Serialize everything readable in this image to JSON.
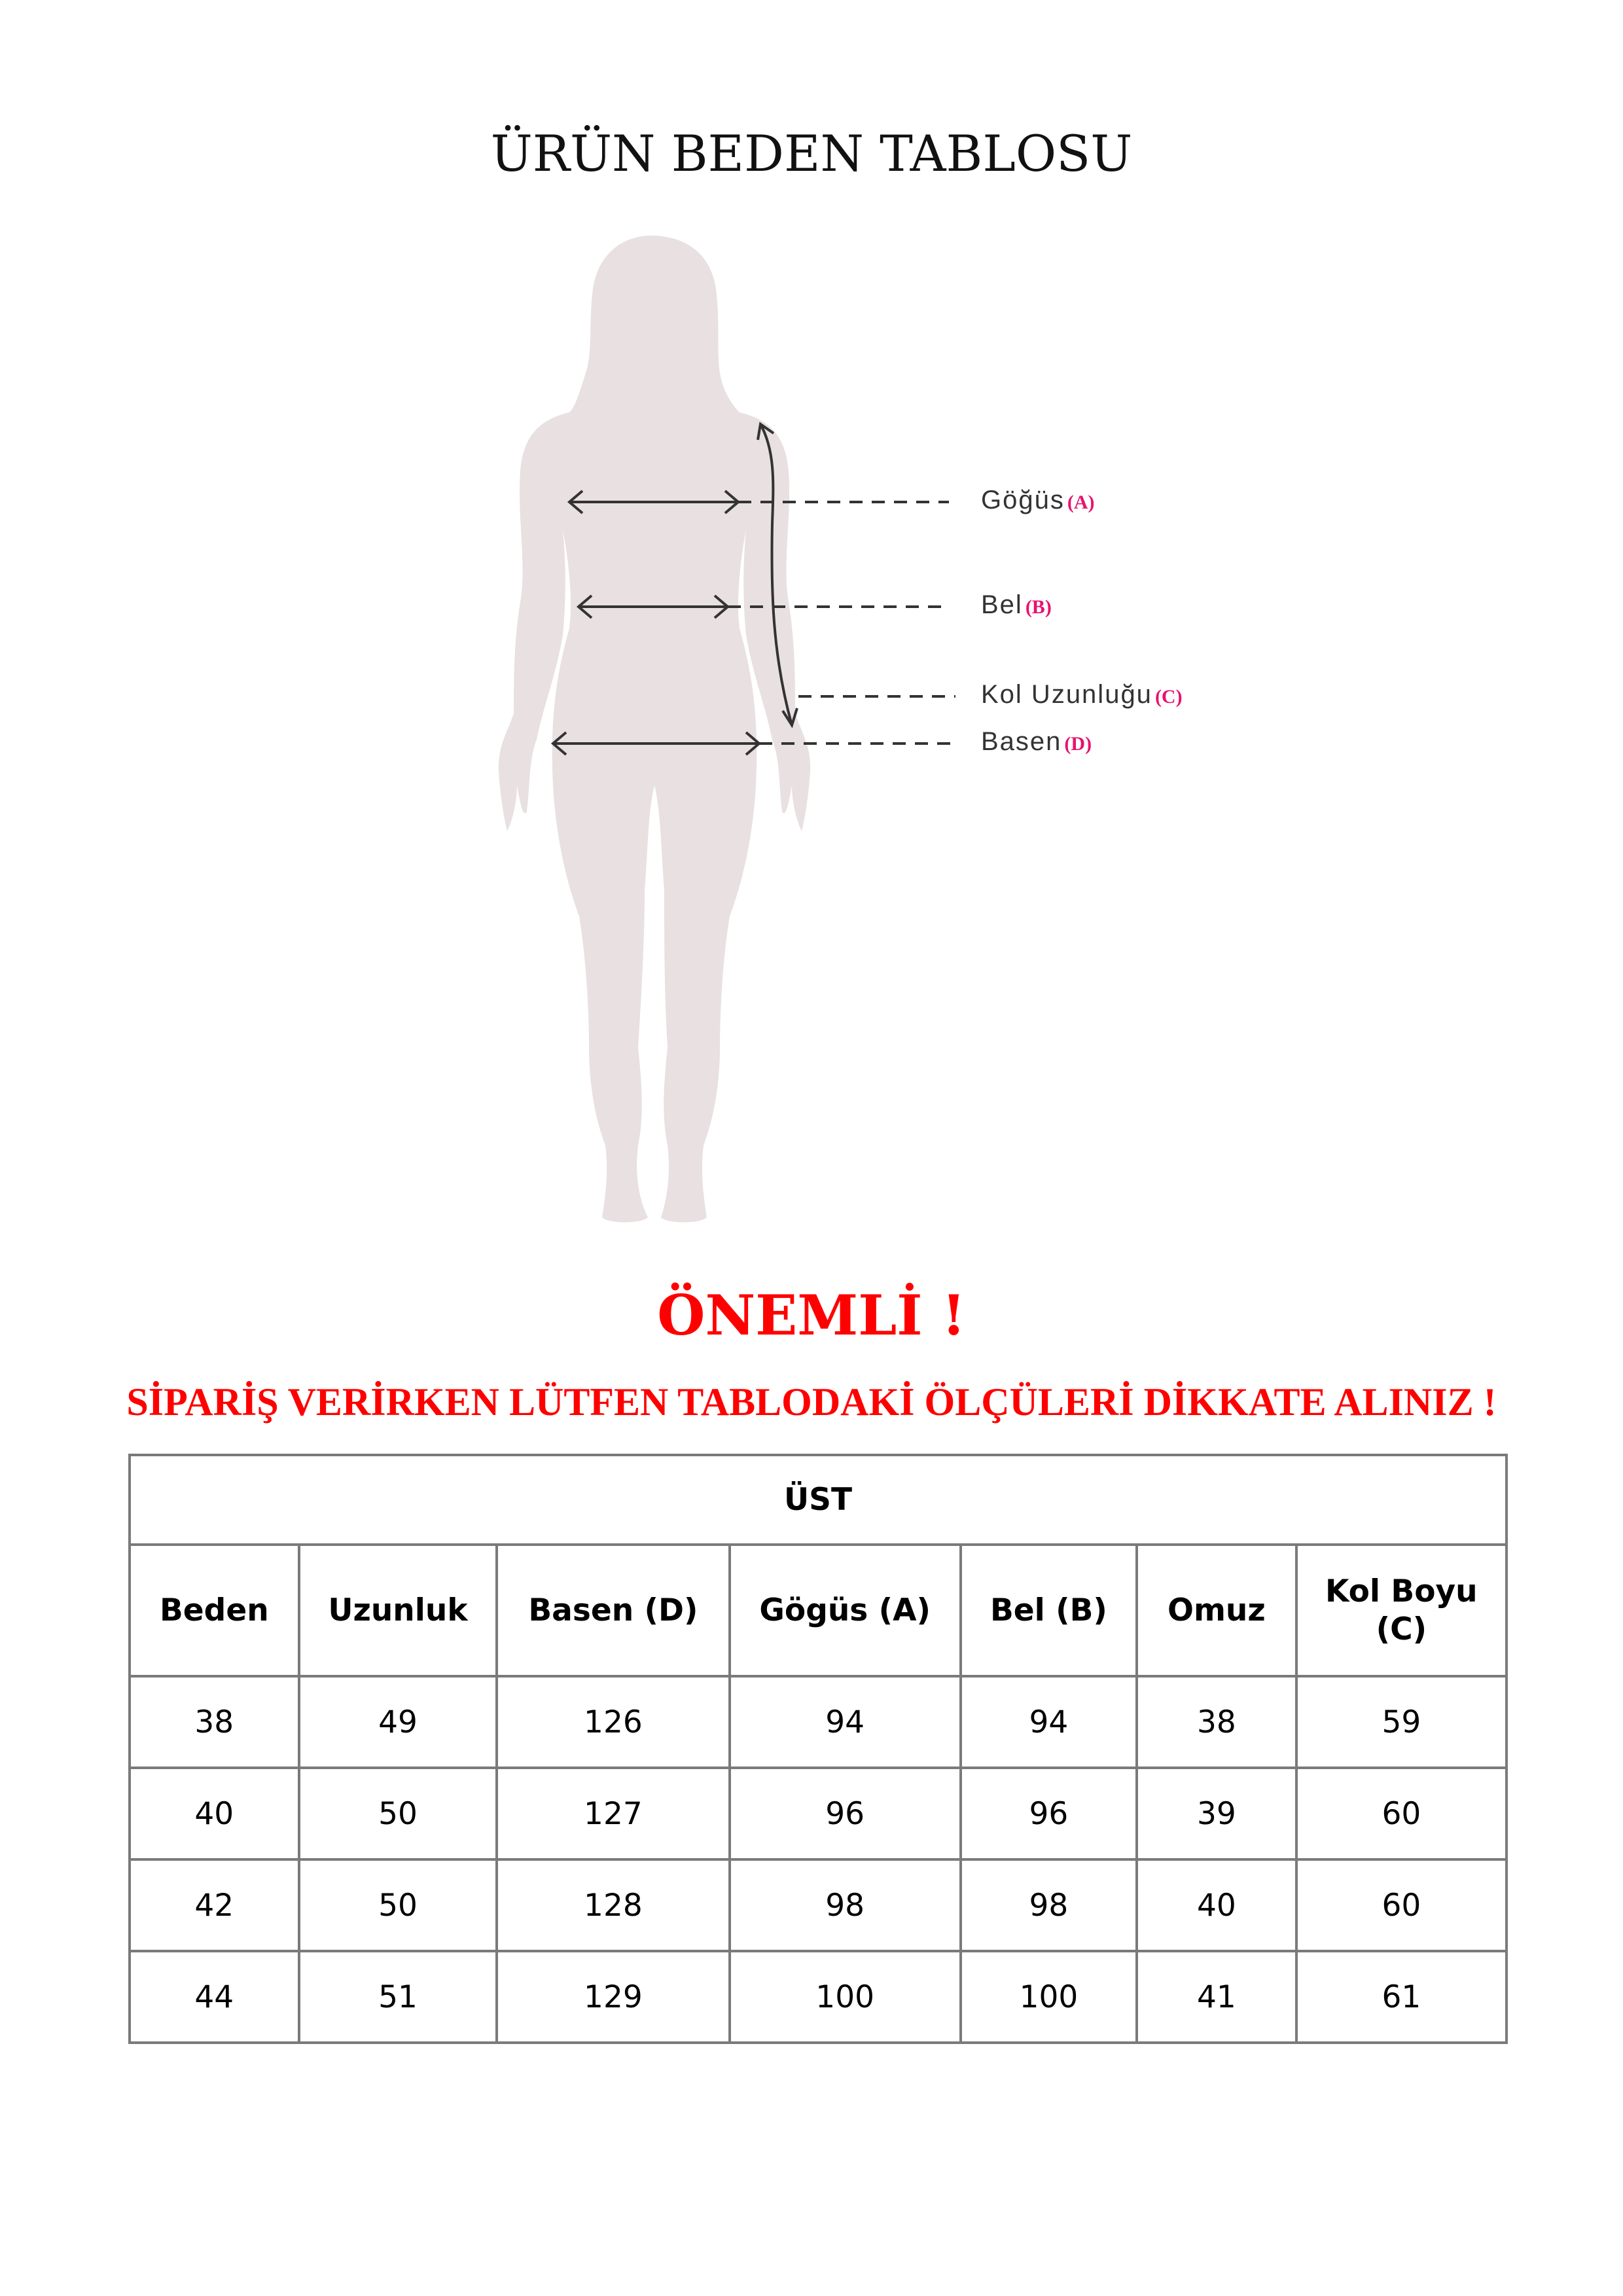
{
  "title": "ÜRÜN BEDEN TABLOSU",
  "figure": {
    "silhouette_color": "#e8e0e1",
    "measurements": [
      {
        "label": "Göğüs",
        "code": "(A)"
      },
      {
        "label": "Bel",
        "code": "(B)"
      },
      {
        "label": "Kol Uzunluğu",
        "code": "(C)"
      },
      {
        "label": "Basen",
        "code": "(D)"
      }
    ]
  },
  "notice": {
    "heading": "ÖNEMLİ !",
    "text": "SİPARİŞ VERİRKEN LÜTFEN TABLODAKİ ÖLÇÜLERİ DİKKATE ALINIZ !",
    "color": "#ff0000"
  },
  "table": {
    "group": "ÜST",
    "columns": [
      "Beden",
      "Uzunluk",
      "Basen (D)",
      "Gögüs (A)",
      "Bel (B)",
      "Omuz",
      "Kol Boyu (C)"
    ],
    "rows": [
      [
        "38",
        "49",
        "126",
        "94",
        "94",
        "38",
        "59"
      ],
      [
        "40",
        "50",
        "127",
        "96",
        "96",
        "39",
        "60"
      ],
      [
        "42",
        "50",
        "128",
        "98",
        "98",
        "40",
        "60"
      ],
      [
        "44",
        "51",
        "129",
        "100",
        "100",
        "41",
        "61"
      ]
    ]
  }
}
